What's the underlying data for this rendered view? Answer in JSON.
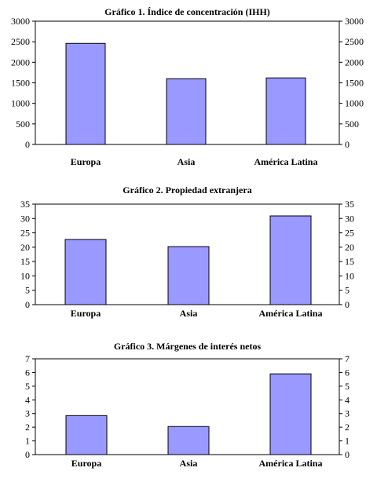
{
  "chart_data": [
    {
      "type": "bar",
      "title": "Gráfico 1. Índice de concentración (IHH)",
      "categories": [
        "Europa",
        "Asia",
        "América Latina"
      ],
      "values": [
        2460,
        1600,
        1620
      ],
      "ylim": [
        0,
        3000
      ],
      "yticks": [
        "0",
        "500",
        "1000",
        "1500",
        "2000",
        "2500",
        "3000"
      ],
      "secondary_axis": true,
      "grid": false,
      "bar_color": "#9999ff"
    },
    {
      "type": "bar",
      "title": "Gráfico 2. Propiedad extranjera",
      "categories": [
        "Europa",
        "Asia",
        "América Latina"
      ],
      "values": [
        22.7,
        20.2,
        30.9
      ],
      "ylim": [
        0,
        35
      ],
      "yticks": [
        "0",
        "5",
        "10",
        "15",
        "20",
        "25",
        "30",
        "35"
      ],
      "secondary_axis": true,
      "grid": false,
      "bar_color": "#9999ff"
    },
    {
      "type": "bar",
      "title": "Gráfico 3. Márgenes de interés netos",
      "categories": [
        "Europa",
        "Asia",
        "América Latina"
      ],
      "values": [
        2.85,
        2.05,
        5.9
      ],
      "ylim": [
        0,
        7
      ],
      "yticks": [
        "0",
        "1",
        "2",
        "3",
        "4",
        "5",
        "6",
        "7"
      ],
      "secondary_axis": true,
      "grid": false,
      "bar_color": "#9999ff"
    }
  ]
}
